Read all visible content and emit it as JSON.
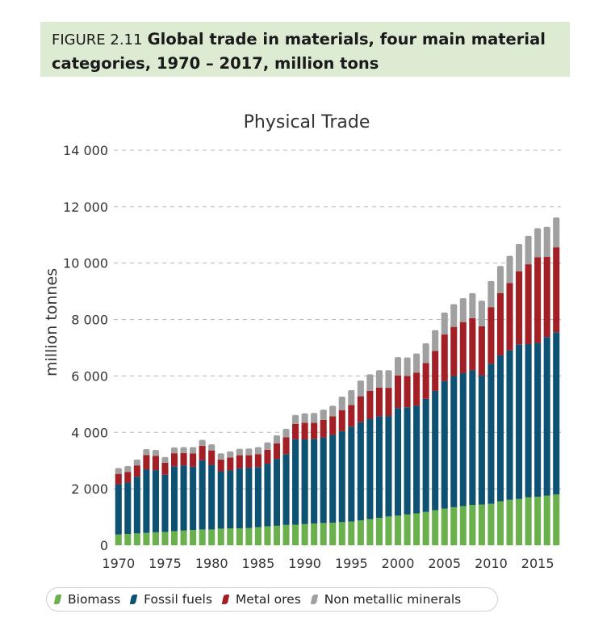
{
  "figure": {
    "label": "FIGURE 2.11",
    "title_line1": "Global trade in materials, four main material",
    "title_line2": "categories, 1970 – 2017, million tons"
  },
  "chart_data": {
    "type": "bar",
    "stacked": true,
    "title": "Physical Trade",
    "ylabel": "million tonnes",
    "xlabel": "",
    "ylim": [
      0,
      14000
    ],
    "yticks": [
      0,
      2000,
      4000,
      6000,
      8000,
      10000,
      12000,
      14000
    ],
    "ytick_labels": [
      "0",
      "2 000",
      "4 000",
      "6 000",
      "8 000",
      "10 000",
      "12 000",
      "14 000"
    ],
    "xtick_labels": [
      "1970",
      "1975",
      "1980",
      "1985",
      "1990",
      "1995",
      "2000",
      "2005",
      "2010",
      "2015"
    ],
    "grid": true,
    "legend_position": "bottom",
    "categories": [
      1970,
      1971,
      1972,
      1973,
      1974,
      1975,
      1976,
      1977,
      1978,
      1979,
      1980,
      1981,
      1982,
      1983,
      1984,
      1985,
      1986,
      1987,
      1988,
      1989,
      1990,
      1991,
      1992,
      1993,
      1994,
      1995,
      1996,
      1997,
      1998,
      1999,
      2000,
      2001,
      2002,
      2003,
      2004,
      2005,
      2006,
      2007,
      2008,
      2009,
      2010,
      2011,
      2012,
      2013,
      2014,
      2015,
      2016,
      2017
    ],
    "series": [
      {
        "name": "Biomass",
        "color": "#6ab04c",
        "values": [
          380,
          400,
          420,
          440,
          460,
          470,
          500,
          520,
          540,
          560,
          560,
          590,
          600,
          600,
          610,
          640,
          670,
          690,
          720,
          730,
          750,
          770,
          790,
          800,
          820,
          840,
          880,
          930,
          970,
          1020,
          1050,
          1090,
          1130,
          1180,
          1240,
          1300,
          1350,
          1390,
          1430,
          1440,
          1470,
          1560,
          1610,
          1640,
          1700,
          1720,
          1760,
          1800
        ]
      },
      {
        "name": "Fossil fuels",
        "color": "#0e5273",
        "values": [
          1780,
          1820,
          2010,
          2250,
          2200,
          2030,
          2300,
          2310,
          2240,
          2450,
          2290,
          2030,
          2050,
          2130,
          2140,
          2130,
          2220,
          2370,
          2510,
          3030,
          3000,
          3000,
          3030,
          3110,
          3220,
          3360,
          3480,
          3550,
          3600,
          3560,
          3810,
          3800,
          3820,
          4010,
          4230,
          4520,
          4650,
          4710,
          4770,
          4570,
          4960,
          5170,
          5300,
          5470,
          5430,
          5450,
          5620,
          5750
        ]
      },
      {
        "name": "Metal ores",
        "color": "#a31f26",
        "values": [
          370,
          380,
          400,
          510,
          510,
          420,
          460,
          440,
          470,
          510,
          510,
          420,
          460,
          460,
          440,
          460,
          490,
          550,
          600,
          540,
          590,
          570,
          620,
          660,
          750,
          770,
          920,
          990,
          1020,
          1000,
          1160,
          1110,
          1170,
          1270,
          1420,
          1650,
          1740,
          1810,
          1850,
          1750,
          2010,
          2210,
          2380,
          2600,
          2830,
          3040,
          2840,
          3010
        ]
      },
      {
        "name": "Non metallic minerals",
        "color": "#a0a0a0",
        "values": [
          150,
          150,
          150,
          150,
          150,
          150,
          150,
          150,
          170,
          160,
          160,
          160,
          160,
          170,
          180,
          190,
          210,
          230,
          240,
          260,
          280,
          290,
          310,
          320,
          420,
          470,
          500,
          530,
          560,
          570,
          590,
          600,
          620,
          640,
          680,
          720,
          750,
          790,
          830,
          850,
          870,
          900,
          910,
          910,
          950,
          970,
          1010,
          1000
        ]
      }
    ]
  },
  "legend": {
    "items": [
      {
        "label": "Biomass",
        "color": "#6ab04c"
      },
      {
        "label": "Fossil fuels",
        "color": "#0e5273"
      },
      {
        "label": "Metal ores",
        "color": "#a31f26"
      },
      {
        "label": "Non metallic minerals",
        "color": "#a0a0a0"
      }
    ]
  }
}
